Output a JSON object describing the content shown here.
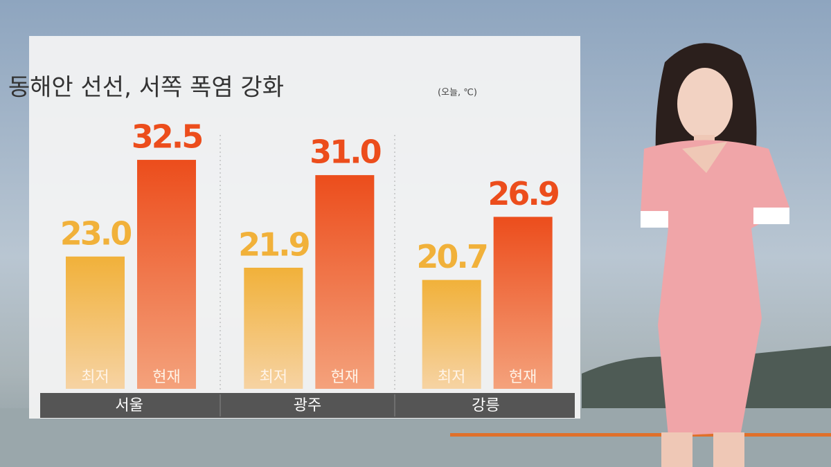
{
  "chart_data": {
    "type": "bar",
    "title": "동해안 선선, 서쪽 폭염 강화",
    "subtitle": "(오늘, ℃)",
    "categories": [
      "서울",
      "광주",
      "강릉"
    ],
    "series": [
      {
        "name": "최저",
        "color": "#f1b13a",
        "values": [
          23.0,
          21.9,
          20.7
        ],
        "value_labels": [
          "23.0",
          "21.9",
          "20.7"
        ]
      },
      {
        "name": "현재",
        "color": "#ec4d1c",
        "values": [
          32.5,
          31.0,
          26.9
        ],
        "value_labels": [
          "32.5",
          "31.0",
          "26.9"
        ]
      }
    ],
    "ylim": [
      10,
      34
    ]
  }
}
